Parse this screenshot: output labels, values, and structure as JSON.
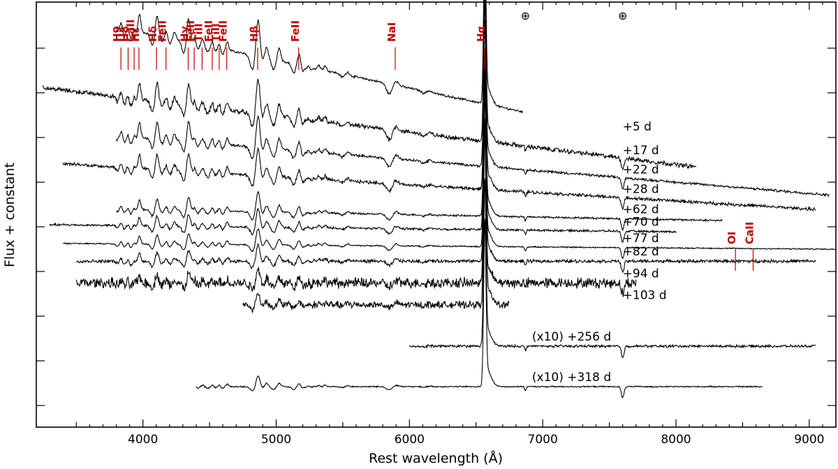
{
  "chart_data": {
    "type": "line",
    "xlabel": "Rest wavelength (Å)",
    "ylabel": "Flux + constant",
    "xlim": [
      3200,
      9200
    ],
    "x_ticks": [
      4000,
      5000,
      6000,
      7000,
      8000,
      9000
    ],
    "y_ticks": "unlabeled",
    "line_color": "#000000",
    "annotation_color": "#c00000",
    "telluric_marker": "⊕",
    "telluric_wavelengths": [
      6870,
      7600
    ],
    "line_ids": [
      {
        "label": "H9",
        "wavelength": 3835
      },
      {
        "label": "H8",
        "wavelength": 3889
      },
      {
        "label": "CaII",
        "wavelength": 3934
      },
      {
        "label": "Hε",
        "wavelength": 3970
      },
      {
        "label": "Hδ",
        "wavelength": 4102
      },
      {
        "label": "FeII",
        "wavelength": 4173
      },
      {
        "label": "Hγ",
        "wavelength": 4340
      },
      {
        "label": "FeII",
        "wavelength": 4385
      },
      {
        "label": "TiII",
        "wavelength": 4444
      },
      {
        "label": "FeII",
        "wavelength": 4520
      },
      {
        "label": "TiII",
        "wavelength": 4572
      },
      {
        "label": "FeII",
        "wavelength": 4629
      },
      {
        "label": "Hβ",
        "wavelength": 4861
      },
      {
        "label": "FeII",
        "wavelength": 5169
      },
      {
        "label": "NaI",
        "wavelength": 5893
      },
      {
        "label": "Hα",
        "wavelength": 6563
      },
      {
        "label": "OI",
        "wavelength": 8446
      },
      {
        "label": "CaII",
        "wavelength": 8579
      }
    ],
    "series": [
      {
        "name": "+5 d",
        "wl_min": 3800,
        "wl_max": 6850,
        "offset": 8.05,
        "slope": -0.55,
        "noise": 0.035,
        "lines": 1.0
      },
      {
        "name": "+17 d",
        "wl_min": 3250,
        "wl_max": 8150,
        "offset": 6.95,
        "slope": -0.32,
        "noise": 0.07,
        "lines": 0.95
      },
      {
        "name": "+22 d",
        "wl_min": 3800,
        "wl_max": 9150,
        "offset": 6.3,
        "slope": -0.22,
        "noise": 0.04,
        "lines": 0.85
      },
      {
        "name": "+28 d",
        "wl_min": 3400,
        "wl_max": 9050,
        "offset": 5.75,
        "slope": -0.16,
        "noise": 0.05,
        "lines": 0.75
      },
      {
        "name": "+62 d",
        "wl_min": 3800,
        "wl_max": 8350,
        "offset": 5.05,
        "slope": -0.05,
        "noise": 0.03,
        "lines": 0.55
      },
      {
        "name": "+70 d",
        "wl_min": 3300,
        "wl_max": 8000,
        "offset": 4.75,
        "slope": -0.03,
        "noise": 0.035,
        "lines": 0.5
      },
      {
        "name": "+77 d",
        "wl_min": 3400,
        "wl_max": 9200,
        "offset": 4.4,
        "slope": -0.02,
        "noise": 0.02,
        "lines": 0.45
      },
      {
        "name": "+82 d",
        "wl_min": 3500,
        "wl_max": 9050,
        "offset": 4.08,
        "slope": 0.0,
        "noise": 0.05,
        "lines": 0.45
      },
      {
        "name": "+94 d",
        "wl_min": 3500,
        "wl_max": 7700,
        "offset": 3.65,
        "slope": 0.0,
        "noise": 0.16,
        "lines": 0.4
      },
      {
        "name": "+103 d",
        "wl_min": 4750,
        "wl_max": 6750,
        "offset": 3.22,
        "slope": 0.0,
        "noise": 0.11,
        "lines": 0.3
      },
      {
        "name": "(x10) +256 d",
        "wl_min": 6000,
        "wl_max": 9050,
        "offset": 2.4,
        "slope": 0.0,
        "noise": 0.04,
        "lines": 0.3
      },
      {
        "name": "(x10) +318 d",
        "wl_min": 4400,
        "wl_max": 8650,
        "offset": 1.6,
        "slope": 0.0,
        "noise": 0.02,
        "lines": 0.3
      }
    ]
  }
}
